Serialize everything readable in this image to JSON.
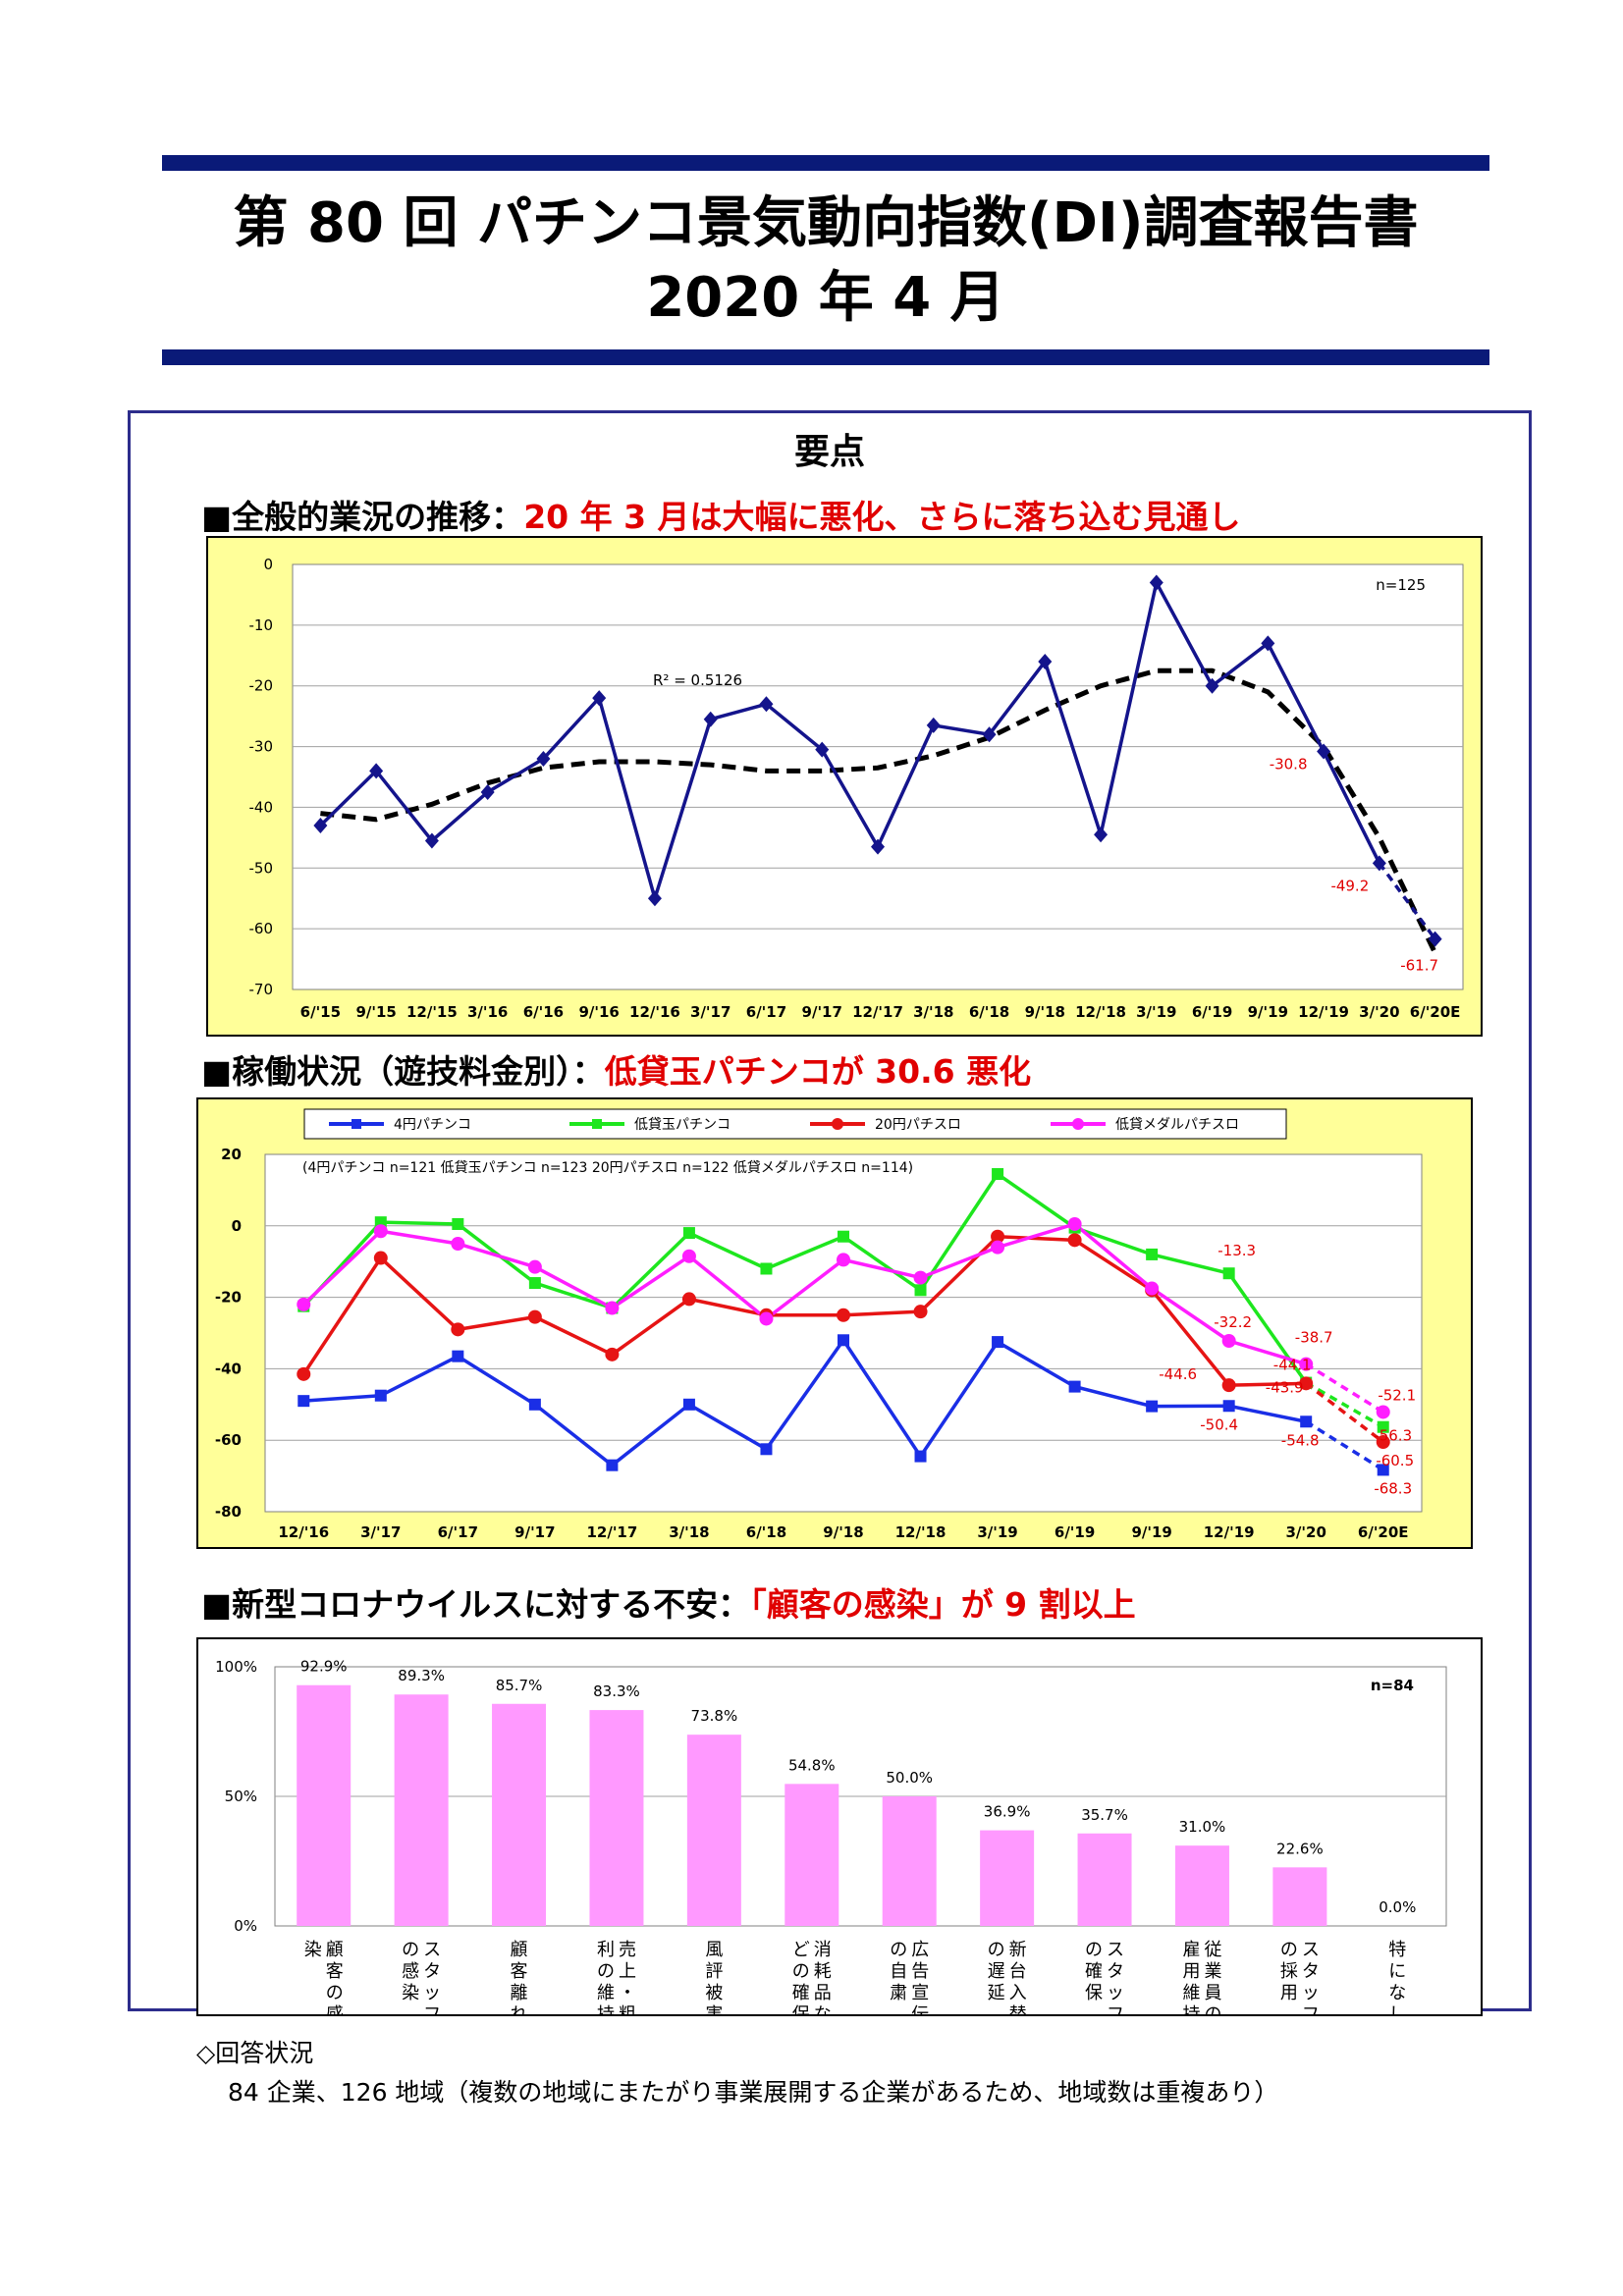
{
  "header": {
    "title": "第 80 回  パチンコ景気動向指数(DI)調査報告書",
    "date": "2020 年 4 月"
  },
  "summary_heading": "要点",
  "sections": [
    {
      "prefix": "■全般的業況の推移：",
      "highlight": "20 年 3 月は大幅に悪化、さらに落ち込む見通し"
    },
    {
      "prefix": "■稼働状況（遊技料金別）：",
      "highlight": "低貸玉パチンコが 30.6 悪化"
    },
    {
      "prefix": "■新型コロナウイルスに対する不安：",
      "highlight": "「顧客の感染」が 9 割以上"
    }
  ],
  "chart_data": [
    {
      "type": "line",
      "categories": [
        "6/'15",
        "9/'15",
        "12/'15",
        "3/'16",
        "6/'16",
        "9/'16",
        "12/'16",
        "3/'17",
        "6/'17",
        "9/'17",
        "12/'17",
        "3/'18",
        "6/'18",
        "9/'18",
        "12/'18",
        "3/'19",
        "6/'19",
        "9/'19",
        "12/'19",
        "3/'20",
        "6/'20E"
      ],
      "values": [
        -43,
        -34,
        -45.5,
        -37.5,
        -32,
        -22,
        -55,
        -25.5,
        -23,
        -30.5,
        -46.5,
        -26.5,
        -28,
        -16,
        -44.5,
        -3,
        -20,
        -13,
        -30.8,
        -49.2,
        -61.7
      ],
      "labels": [
        {
          "index": 18,
          "text": "-30.8"
        },
        {
          "index": 19,
          "text": "-49.2"
        },
        {
          "index": 20,
          "text": "-61.7"
        }
      ],
      "trend": [
        -41,
        -42,
        -39.5,
        -36,
        -33.5,
        -32.5,
        -32.5,
        -33,
        -34,
        -34,
        -33.5,
        -31.5,
        -28.5,
        -24,
        -20,
        -17.5,
        -17.5,
        -21,
        -30,
        -45,
        -64
      ],
      "r2_label": "R² = 0.5126",
      "n_label": "n=125",
      "ylim": [
        -70,
        0
      ],
      "yticks": [
        "0",
        "-10",
        "-20",
        "-30",
        "-40",
        "-50",
        "-60",
        "-70"
      ],
      "series_color": "#14148c",
      "trend_color": "#000000",
      "grid": true
    },
    {
      "type": "line",
      "categories": [
        "12/'16",
        "3/'17",
        "6/'17",
        "9/'17",
        "12/'17",
        "3/'18",
        "6/'18",
        "9/'18",
        "12/'18",
        "3/'19",
        "6/'19",
        "9/'19",
        "12/'19",
        "3/'20",
        "6/'20E"
      ],
      "series": [
        {
          "name": "4円パチンコ",
          "color": "#1a2ee6",
          "marker": "square",
          "values": [
            -49,
            -47.5,
            -36.5,
            -50,
            -67,
            -50,
            -62.5,
            -32,
            -64.5,
            -32.5,
            -45,
            -50.5,
            -50.4,
            -54.8,
            -68.3
          ],
          "labels": [
            {
              "index": 12,
              "text": "-50.4"
            },
            {
              "index": 13,
              "text": "-54.8"
            },
            {
              "index": 14,
              "text": "-68.3"
            }
          ]
        },
        {
          "name": "低貸玉パチンコ",
          "color": "#1ee61e",
          "marker": "square",
          "values": [
            -22.5,
            1,
            0.5,
            -16,
            -23,
            -2,
            -12,
            -3,
            -18,
            14.5,
            -0.5,
            -8,
            -13.3,
            -43.9,
            -56.3
          ],
          "labels": [
            {
              "index": 12,
              "text": "-13.3"
            },
            {
              "index": 13,
              "text": "-43.9"
            },
            {
              "index": 14,
              "text": "-56.3"
            }
          ]
        },
        {
          "name": "20円パチスロ",
          "color": "#e61414",
          "marker": "circle",
          "values": [
            -41.5,
            -9,
            -29,
            -25.5,
            -36,
            -20.5,
            -25,
            -25,
            -24,
            -3,
            -4,
            -18,
            -44.6,
            -44.1,
            -60.5
          ],
          "labels": [
            {
              "index": 12,
              "text": "-44.6"
            },
            {
              "index": 13,
              "text": "-44.1"
            },
            {
              "index": 14,
              "text": "-60.5"
            }
          ]
        },
        {
          "name": "低貸メダルパチスロ",
          "color": "#ff1eff",
          "marker": "circle",
          "values": [
            -22,
            -1.5,
            -5,
            -11.5,
            -23,
            -8.5,
            -26,
            -9.5,
            -14.5,
            -6,
            0.5,
            -17.5,
            -32.2,
            -38.7,
            -52.1
          ],
          "labels": [
            {
              "index": 12,
              "text": "-32.2"
            },
            {
              "index": 13,
              "text": "-38.7"
            },
            {
              "index": 14,
              "text": "-52.1"
            }
          ]
        }
      ],
      "n_note": "(4円パチンコ n=121  低貸玉パチンコ n=123  20円パチスロ n=122  低貸メダルパチスロ n=114)",
      "ylim": [
        -80,
        20
      ],
      "yticks": [
        "20",
        "0",
        "-20",
        "-40",
        "-60",
        "-80"
      ],
      "legend": "top",
      "grid": true
    },
    {
      "type": "bar",
      "categories": [
        "顧客の感染",
        "スタッフの感染",
        "顧客離れ",
        "売上・粗利の維持",
        "風評被害",
        "消耗品などの確保",
        "広告宣伝の自粛",
        "新台入替の遅延",
        "スタッフの確保",
        "従業員の雇用維持",
        "スタッフの採用",
        "特になし"
      ],
      "category_lines": [
        [
          "顧",
          "客",
          "の",
          "感",
          "染"
        ],
        [
          "ス",
          "タ",
          "ッ",
          "フ",
          "の",
          "感",
          "染"
        ],
        [
          "顧",
          "客",
          "離",
          "れ"
        ],
        [
          "売",
          "上",
          "・",
          "粗",
          "利",
          "の",
          "維",
          "持"
        ],
        [
          "風",
          "評",
          "被",
          "害"
        ],
        [
          "消",
          "耗",
          "品",
          "な",
          "ど",
          "の",
          "確",
          "保"
        ],
        [
          "広",
          "告",
          "宣",
          "伝",
          "の",
          "自",
          "粛"
        ],
        [
          "新",
          "台",
          "入",
          "替",
          "の",
          "遅",
          "延"
        ],
        [
          "ス",
          "タ",
          "ッ",
          "フ",
          "の",
          "確",
          "保"
        ],
        [
          "従",
          "業",
          "員",
          "の",
          "雇",
          "用",
          "維",
          "持"
        ],
        [
          "ス",
          "タ",
          "ッ",
          "フ",
          "の",
          "採",
          "用"
        ],
        [
          "特",
          "に",
          "な",
          "し"
        ]
      ],
      "values": [
        92.9,
        89.3,
        85.7,
        83.3,
        73.8,
        54.8,
        50.0,
        36.9,
        35.7,
        31.0,
        22.6,
        0.0
      ],
      "labels": [
        "92.9%",
        "89.3%",
        "85.7%",
        "83.3%",
        "73.8%",
        "54.8%",
        "50.0%",
        "36.9%",
        "35.7%",
        "31.0%",
        "22.6%",
        "0.0%"
      ],
      "n_label": "n=84",
      "ylim": [
        0,
        100
      ],
      "yticks": [
        "100%",
        "50%",
        "0%"
      ],
      "bar_color": "#ff99ff",
      "grid": true
    }
  ],
  "response": {
    "heading": "◇回答状況",
    "text": "84 企業、126 地域（複数の地域にまたがり事業展開する企業があるため、地域数は重複あり）"
  }
}
